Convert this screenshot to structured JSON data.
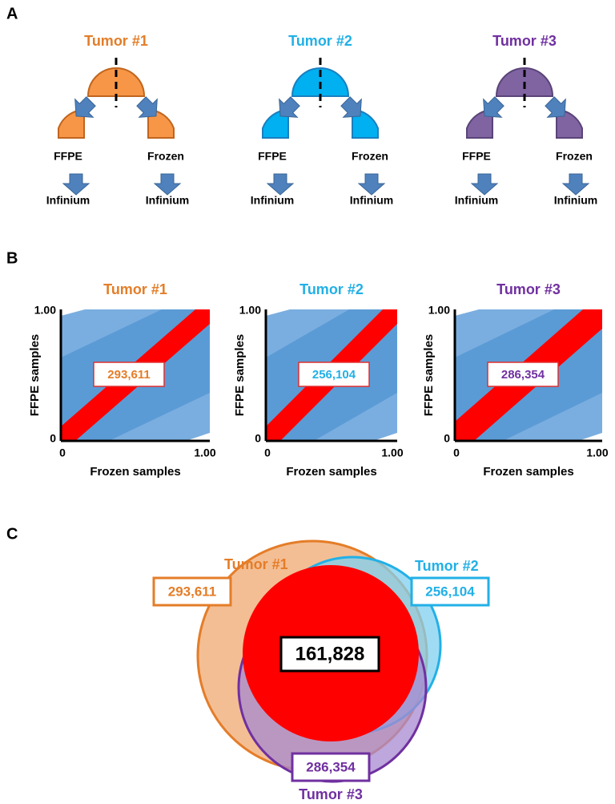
{
  "panel_a": {
    "label": "A",
    "tumors": [
      {
        "name": "Tumor #1",
        "color": "#e47d28",
        "fill": "#f79646",
        "stroke": "#c0651e",
        "samples": [
          {
            "type": "FFPE",
            "assay": "Infinium"
          },
          {
            "type": "Frozen",
            "assay": "Infinium"
          }
        ]
      },
      {
        "name": "Tumor #2",
        "color": "#22b0e6",
        "fill": "#00b0f0",
        "stroke": "#1a7fc0",
        "samples": [
          {
            "type": "FFPE",
            "assay": "Infinium"
          },
          {
            "type": "Frozen",
            "assay": "Infinium"
          }
        ]
      },
      {
        "name": "Tumor #3",
        "color": "#7030a0",
        "fill": "#8064a2",
        "stroke": "#5a4478",
        "samples": [
          {
            "type": "FFPE",
            "assay": "Infinium"
          },
          {
            "type": "Frozen",
            "assay": "Infinium"
          }
        ]
      }
    ]
  },
  "panel_b": {
    "label": "B",
    "x_label": "Frozen samples",
    "y_label": "FFPE samples",
    "axis_ticks": [
      "0",
      "1.00"
    ],
    "plots": [
      {
        "title": "Tumor #1",
        "count": "293,611",
        "color": "#e47d28"
      },
      {
        "title": "Tumor #2",
        "count": "256,104",
        "color": "#22b0e6"
      },
      {
        "title": "Tumor #3",
        "count": "286,354",
        "color": "#7030a0"
      }
    ]
  },
  "panel_c": {
    "label": "C",
    "sets": [
      {
        "name": "Tumor #1",
        "count": "293,611",
        "color": "#e47d28",
        "fill": "#f0a870"
      },
      {
        "name": "Tumor #2",
        "count": "256,104",
        "color": "#22b0e6",
        "fill": "#7fd0f0"
      },
      {
        "name": "Tumor #3",
        "count": "286,354",
        "color": "#7030a0",
        "fill": "#a78ad0"
      }
    ],
    "intersection": "161,828"
  }
}
